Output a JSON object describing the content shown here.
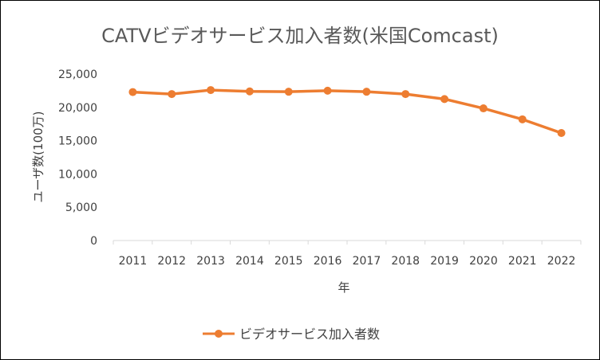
{
  "chart_data": {
    "type": "line",
    "title": "CATVビデオサービス加入者数(米国Comcast)",
    "xlabel": "年",
    "ylabel": "ユーザ数(100万)",
    "categories": [
      "2011",
      "2012",
      "2013",
      "2014",
      "2015",
      "2016",
      "2017",
      "2018",
      "2019",
      "2020",
      "2021",
      "2022"
    ],
    "series": [
      {
        "name": "ビデオサービス加入者数",
        "color": "#ED7D31",
        "values": [
          22300,
          22000,
          22600,
          22400,
          22350,
          22500,
          22350,
          22000,
          21250,
          19850,
          18200,
          16150
        ]
      }
    ],
    "ylim": [
      0,
      25000
    ],
    "yticks": [
      "0",
      "5,000",
      "10,000",
      "15,000",
      "20,000",
      "25,000"
    ],
    "grid": false,
    "legend_position": "bottom"
  }
}
